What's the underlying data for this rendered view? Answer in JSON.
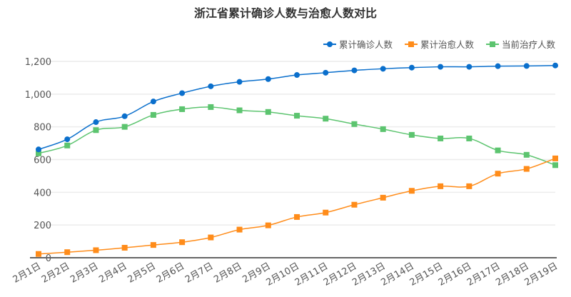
{
  "chart_data": {
    "type": "line",
    "title": "浙江省累计确诊人数与治愈人数对比",
    "categories": [
      "2月1日",
      "2月2日",
      "2月3日",
      "2月4日",
      "2月5日",
      "2月6日",
      "2月7日",
      "2月8日",
      "2月9日",
      "2月10日",
      "2月11日",
      "2月12日",
      "2月13日",
      "2月14日",
      "2月15日",
      "2月16日",
      "2月17日",
      "2月18日",
      "2月19日"
    ],
    "ylim": [
      0,
      1200
    ],
    "yticks": [
      0,
      200,
      400,
      600,
      800,
      1000,
      1200
    ],
    "ytick_labels": [
      "0",
      "200",
      "400",
      "600",
      "800",
      "1,000",
      "1,200"
    ],
    "grid": true,
    "legend_position": "top-right",
    "series": [
      {
        "name": "累计确诊人数",
        "color": "#0a6fcc",
        "marker": "circle",
        "values": [
          662,
          724,
          829,
          865,
          955,
          1006,
          1048,
          1075,
          1092,
          1117,
          1131,
          1145,
          1155,
          1162,
          1167,
          1167,
          1171,
          1172,
          1175
        ]
      },
      {
        "name": "累计治愈人数",
        "color": "#ff8c1a",
        "marker": "square",
        "values": [
          23,
          34,
          46,
          61,
          78,
          95,
          124,
          172,
          198,
          249,
          276,
          324,
          367,
          409,
          437,
          437,
          514,
          543,
          607
        ]
      },
      {
        "name": "当前治疗人数",
        "color": "#5cc46f",
        "marker": "square",
        "values": [
          638,
          686,
          780,
          800,
          873,
          908,
          921,
          901,
          891,
          868,
          850,
          817,
          786,
          751,
          729,
          729,
          656,
          629,
          566
        ]
      }
    ]
  }
}
